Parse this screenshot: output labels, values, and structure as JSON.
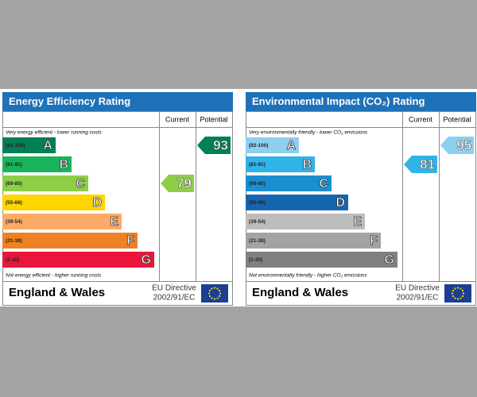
{
  "panels": [
    {
      "title": "Energy Efficiency Rating",
      "current_header": "Current",
      "potential_header": "Potential",
      "top_note": "Very energy efficient - lower running costs",
      "bottom_note": "Not energy efficient - higher running costs",
      "bands": [
        {
          "range": "(92-100)",
          "letter": "A",
          "color": "#008054"
        },
        {
          "range": "(81-91)",
          "letter": "B",
          "color": "#19b459"
        },
        {
          "range": "(69-80)",
          "letter": "C",
          "color": "#8dce46"
        },
        {
          "range": "(55-68)",
          "letter": "D",
          "color": "#ffd500"
        },
        {
          "range": "(39-54)",
          "letter": "E",
          "color": "#fcaa65"
        },
        {
          "range": "(21-38)",
          "letter": "F",
          "color": "#ef8023"
        },
        {
          "range": "(1-20)",
          "letter": "G",
          "color": "#e9153b"
        }
      ],
      "current": 79,
      "potential": 93,
      "region": "England & Wales",
      "directive": "EU Directive",
      "directive_code": "2002/91/EC"
    },
    {
      "title": "Environmental Impact (CO₂) Rating",
      "current_header": "Current",
      "potential_header": "Potential",
      "top_note": "Very environmentally friendly - lower CO₂ emissions",
      "bottom_note": "Not environmentally friendly - higher CO₂ emissions",
      "bands": [
        {
          "range": "(92-100)",
          "letter": "A",
          "color": "#8ecfef"
        },
        {
          "range": "(81-91)",
          "letter": "B",
          "color": "#2fb3e9"
        },
        {
          "range": "(69-80)",
          "letter": "C",
          "color": "#1a8fd0"
        },
        {
          "range": "(55-68)",
          "letter": "D",
          "color": "#1565b0"
        },
        {
          "range": "(39-54)",
          "letter": "E",
          "color": "#bdbdbd"
        },
        {
          "range": "(21-38)",
          "letter": "F",
          "color": "#a3a3a3"
        },
        {
          "range": "(1-20)",
          "letter": "G",
          "color": "#808080"
        }
      ],
      "current": 81,
      "potential": 95,
      "region": "England & Wales",
      "directive": "EU Directive",
      "directive_code": "2002/91/EC"
    }
  ]
}
